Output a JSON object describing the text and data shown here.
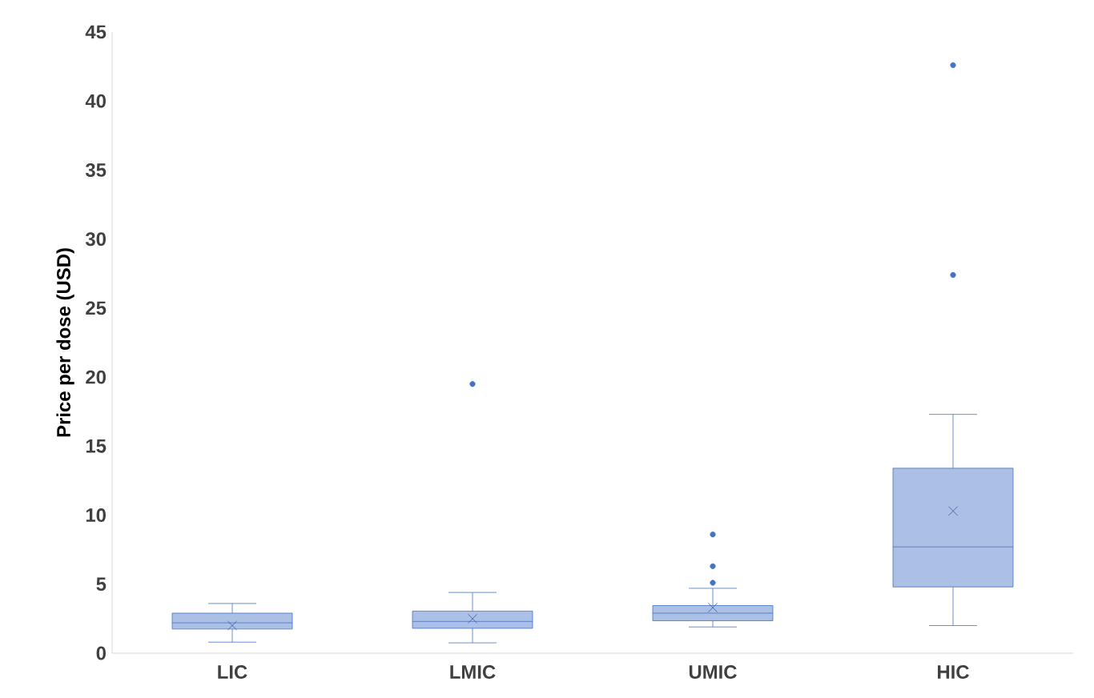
{
  "chart_data": {
    "type": "box",
    "ylabel": "Price per dose (USD)",
    "categories": [
      "LIC",
      "LMIC",
      "UMIC",
      "HIC"
    ],
    "color": "#4472c4",
    "ylim": [
      0,
      45
    ],
    "yticks": [
      0,
      5,
      10,
      15,
      20,
      25,
      30,
      35,
      40,
      45
    ],
    "grid": false,
    "boxes": [
      {
        "low": 0.8,
        "q1": 1.75,
        "median": 2.2,
        "q3": 2.9,
        "high": 3.6,
        "mean": 2.0
      },
      {
        "low": 0.75,
        "q1": 1.8,
        "median": 2.3,
        "q3": 3.05,
        "high": 4.4,
        "mean": 2.5,
        "outliers": [
          19.5
        ]
      },
      {
        "low": 1.9,
        "q1": 2.35,
        "median": 2.9,
        "q3": 3.45,
        "high": 4.7,
        "mean": 3.3,
        "outliers": [
          5.1,
          6.3,
          8.6
        ]
      },
      {
        "low": 2.0,
        "q1": 4.8,
        "median": 7.7,
        "q3": 13.4,
        "high": 17.3,
        "mean": 10.3,
        "outliers": [
          27.4,
          42.6
        ]
      }
    ]
  }
}
